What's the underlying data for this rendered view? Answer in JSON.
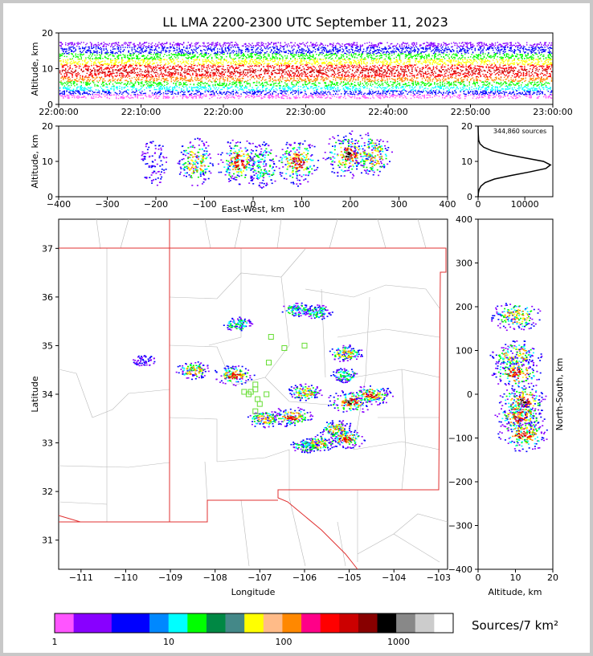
{
  "title": "LL LMA 2200-2300 UTC September 11, 2023",
  "chart_data": [
    {
      "id": "altitude-vs-time",
      "type": "heatmap",
      "ylabel": "Altitude, km",
      "ylim": [
        0,
        20
      ],
      "yticks": [
        "0",
        "10",
        "20"
      ],
      "xticks": [
        "22:00:00",
        "22:10:00",
        "22:20:00",
        "22:30:00",
        "22:40:00",
        "22:50:00",
        "23:00:00"
      ],
      "xlim": [
        "22:00:00",
        "23:00:00"
      ]
    },
    {
      "id": "altitude-vs-east-west",
      "type": "heatmap",
      "xlabel": "East-West, km",
      "ylabel": "Altitude, km",
      "xlim": [
        -400,
        400
      ],
      "ylim": [
        0,
        20
      ],
      "xticks": [
        "−400",
        "−300",
        "−200",
        "−100",
        "0",
        "100",
        "200",
        "300",
        "400"
      ],
      "yticks": [
        "0",
        "10",
        "20"
      ],
      "clusters": [
        {
          "x": -205,
          "alt": 10,
          "intensity": 1
        },
        {
          "x": -120,
          "alt": 10,
          "intensity": 3
        },
        {
          "x": -30,
          "alt": 10,
          "intensity": 4
        },
        {
          "x": 20,
          "alt": 9,
          "intensity": 2
        },
        {
          "x": 90,
          "alt": 10,
          "intensity": 4
        },
        {
          "x": 195,
          "alt": 12,
          "intensity": 5
        },
        {
          "x": 245,
          "alt": 12,
          "intensity": 3
        }
      ]
    },
    {
      "id": "altitude-histogram",
      "type": "line",
      "annotation": "344,860 sources",
      "xlim": [
        0,
        16000
      ],
      "ylim": [
        0,
        20
      ],
      "xticks": [
        "0",
        "10000"
      ],
      "yticks": [
        "0",
        "10",
        "20"
      ],
      "series": [
        {
          "x": [
            10,
            60,
            200,
            600,
            1500,
            3500,
            7000,
            11000,
            14500,
            15500,
            14000,
            10000,
            6000,
            3000,
            1200,
            400,
            120,
            30,
            5
          ],
          "y": [
            0,
            1,
            2,
            3,
            4,
            5,
            6,
            7,
            8,
            9,
            10,
            11,
            12,
            13,
            14,
            15,
            16,
            18,
            20
          ]
        }
      ]
    },
    {
      "id": "plan-view-map",
      "type": "heatmap",
      "xlabel": "Longitude",
      "ylabel": "Latitude",
      "xlim": [
        -111.5,
        -102.8
      ],
      "ylim": [
        30.4,
        37.6
      ],
      "xticks": [
        "−111",
        "−110",
        "−109",
        "−108",
        "−107",
        "−106",
        "−105",
        "−104",
        "−103"
      ],
      "yticks": [
        "31",
        "32",
        "33",
        "34",
        "35",
        "36",
        "37"
      ],
      "stations": [
        {
          "lon": -107.2,
          "lat": 34.05
        },
        {
          "lon": -107.1,
          "lat": 34.1
        },
        {
          "lon": -107.05,
          "lat": 33.9
        },
        {
          "lon": -107.25,
          "lat": 34.0
        },
        {
          "lon": -106.85,
          "lat": 34.0
        },
        {
          "lon": -107.1,
          "lat": 34.2
        },
        {
          "lon": -107.35,
          "lat": 34.05
        },
        {
          "lon": -107.0,
          "lat": 33.8
        },
        {
          "lon": -106.8,
          "lat": 34.65
        },
        {
          "lon": -106.45,
          "lat": 34.95
        },
        {
          "lon": -106.0,
          "lat": 35.0
        },
        {
          "lon": -106.75,
          "lat": 35.18
        },
        {
          "lon": -107.1,
          "lat": 33.65
        }
      ],
      "clusters": [
        {
          "lon": -107.5,
          "lat": 35.45,
          "intensity": 2
        },
        {
          "lon": -106.2,
          "lat": 35.75,
          "intensity": 2
        },
        {
          "lon": -105.7,
          "lat": 35.7,
          "intensity": 2
        },
        {
          "lon": -109.6,
          "lat": 34.7,
          "intensity": 1
        },
        {
          "lon": -108.5,
          "lat": 34.5,
          "intensity": 3
        },
        {
          "lon": -107.6,
          "lat": 34.4,
          "intensity": 4
        },
        {
          "lon": -105.1,
          "lat": 34.85,
          "intensity": 3
        },
        {
          "lon": -105.1,
          "lat": 34.4,
          "intensity": 2
        },
        {
          "lon": -106.0,
          "lat": 34.05,
          "intensity": 3
        },
        {
          "lon": -105.0,
          "lat": 33.85,
          "intensity": 5
        },
        {
          "lon": -104.5,
          "lat": 34.0,
          "intensity": 4
        },
        {
          "lon": -106.3,
          "lat": 33.55,
          "intensity": 4
        },
        {
          "lon": -106.9,
          "lat": 33.5,
          "intensity": 3
        },
        {
          "lon": -105.3,
          "lat": 33.3,
          "intensity": 3
        },
        {
          "lon": -105.1,
          "lat": 33.1,
          "intensity": 4
        },
        {
          "lon": -105.7,
          "lat": 33.0,
          "intensity": 3
        },
        {
          "lon": -106.0,
          "lat": 32.95,
          "intensity": 2
        }
      ]
    },
    {
      "id": "north-south-vs-altitude",
      "type": "heatmap",
      "xlabel": "Altitude, km",
      "ylabel": "North-South, km",
      "xlim": [
        0,
        20
      ],
      "ylim": [
        -400,
        400
      ],
      "xticks": [
        "0",
        "10",
        "20"
      ],
      "yticks": [
        "−400",
        "−300",
        "−200",
        "−100",
        "0",
        "100",
        "200",
        "300",
        "400"
      ],
      "clusters": [
        {
          "alt": 10,
          "ns": 180,
          "intensity": 3
        },
        {
          "alt": 10,
          "ns": 90,
          "intensity": 3
        },
        {
          "alt": 10,
          "ns": 50,
          "intensity": 4
        },
        {
          "alt": 12,
          "ns": -15,
          "intensity": 5
        },
        {
          "alt": 11,
          "ns": -50,
          "intensity": 4
        },
        {
          "alt": 12,
          "ns": -90,
          "intensity": 4
        }
      ]
    }
  ],
  "colorbar": {
    "label": "Sources/7 km²",
    "tick_labels": [
      "1",
      "10",
      "100",
      "1000"
    ],
    "colors": [
      "#ff55ff",
      "#8800ff",
      "#8800ff",
      "#0000ff",
      "#0000ff",
      "#0088ff",
      "#00ffff",
      "#00ff00",
      "#008844",
      "#448888",
      "#ffff00",
      "#ffbb88",
      "#ff8800",
      "#ff0088",
      "#ff0000",
      "#cc0000",
      "#880000",
      "#000000",
      "#888888",
      "#cccccc",
      "#ffffff"
    ]
  }
}
